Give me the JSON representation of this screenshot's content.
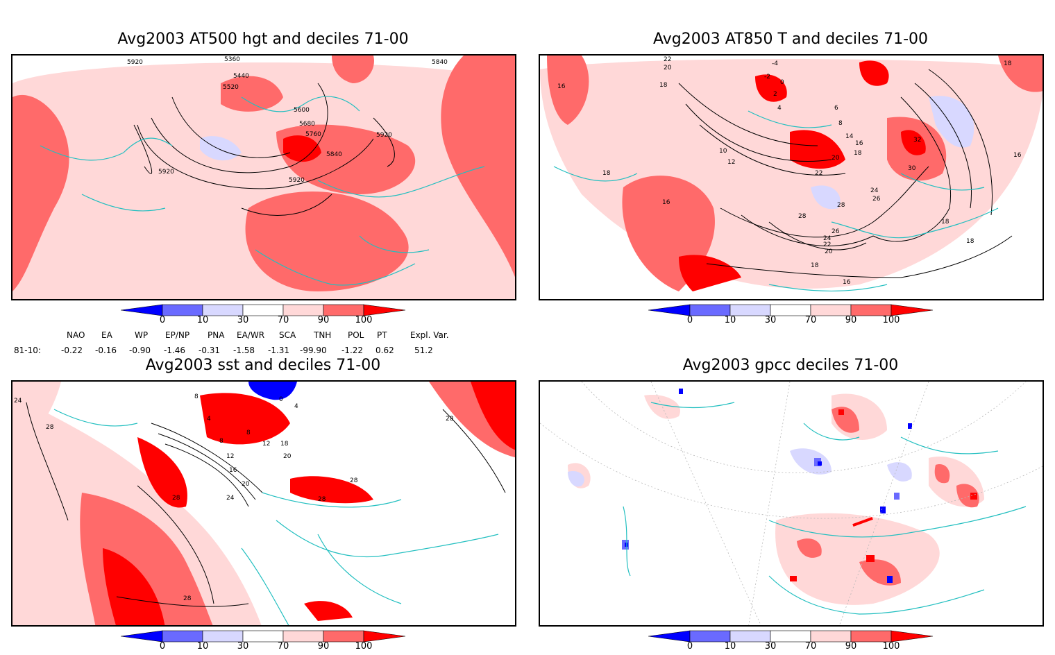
{
  "panels": [
    {
      "title": "Avg2003 AT500 hgt and deciles 71-00",
      "contour_labels": [
        "5920",
        "5360",
        "5440",
        "5520",
        "5600",
        "5680",
        "5760",
        "5840",
        "5920",
        "5920",
        "5840",
        "5920"
      ]
    },
    {
      "title": "Avg2003 AT850 T and deciles 71-00",
      "contour_labels": [
        "22",
        "20",
        "18",
        "16",
        "-4",
        "-2",
        "0",
        "2",
        "4",
        "6",
        "8",
        "10",
        "12",
        "14",
        "16",
        "18",
        "20",
        "22",
        "24",
        "26",
        "28",
        "32",
        "30",
        "16",
        "18",
        "18",
        "28",
        "26",
        "24",
        "22",
        "20",
        "18",
        "16",
        "16",
        "18",
        "18"
      ]
    },
    {
      "title": "Avg2003 sst and deciles 71-00",
      "contour_labels": [
        "24",
        "28",
        "8",
        "4",
        "8",
        "8",
        "12",
        "12",
        "16",
        "20",
        "24",
        "28",
        "28",
        "28",
        "20",
        "28",
        "0",
        "4",
        "18",
        "28"
      ]
    },
    {
      "title": "Avg2003 gpcc deciles 71-00",
      "contour_labels": []
    }
  ],
  "colorbar": {
    "ticks": [
      "0",
      "10",
      "30",
      "70",
      "90",
      "100"
    ],
    "colors": [
      "#0000ff",
      "#6a6aff",
      "#d8d8ff",
      "#ffffff",
      "#ffd8d8",
      "#ff6a6a",
      "#ff0000"
    ]
  },
  "indices": {
    "headers": [
      "NAO",
      "EA",
      "WP",
      "EP/NP",
      "PNA",
      "EA/WR",
      "SCA",
      "TNH",
      "POL",
      "PT",
      "Expl. Var."
    ],
    "row_label": "81-10:",
    "values": [
      "-0.22",
      "-0.16",
      "-0.90",
      "-1.46",
      "-0.31",
      "-1.58",
      "-1.31",
      "-99.90",
      "-1.22",
      "0.62",
      "51.2"
    ]
  }
}
